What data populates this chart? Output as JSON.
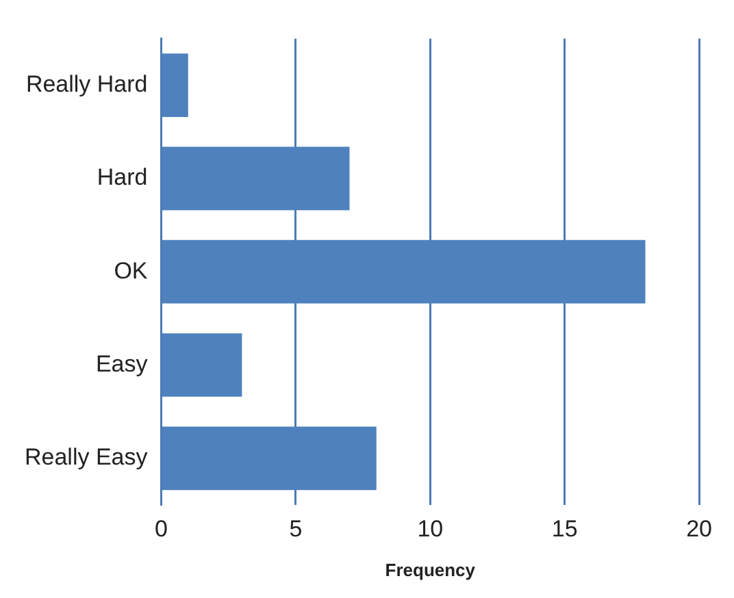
{
  "chart_data": {
    "type": "bar",
    "orientation": "horizontal",
    "categories": [
      "Really Hard",
      "Hard",
      "OK",
      "Easy",
      "Really Easy"
    ],
    "values": [
      1,
      7,
      18,
      3,
      8
    ],
    "color": "#4f81bd",
    "xlabel": "Frequency",
    "xlim": [
      0,
      20
    ],
    "xticks": [
      0,
      5,
      10,
      15,
      20
    ],
    "grid": "x",
    "legend": false
  }
}
